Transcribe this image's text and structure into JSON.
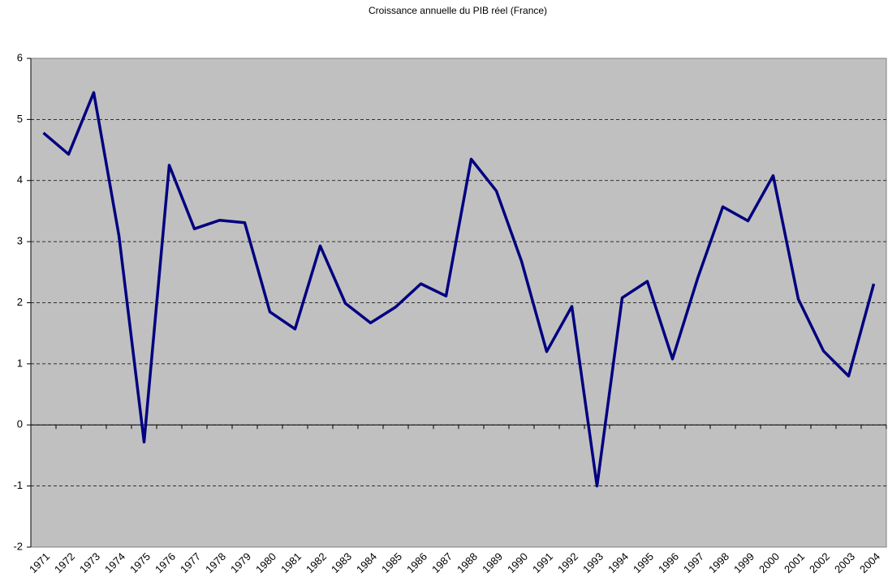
{
  "chart_data": {
    "type": "line",
    "title": "Croissance annuelle du PIB réel (France)",
    "categories": [
      "1971",
      "1972",
      "1973",
      "1974",
      "1975",
      "1976",
      "1977",
      "1978",
      "1979",
      "1980",
      "1981",
      "1982",
      "1983",
      "1984",
      "1985",
      "1986",
      "1987",
      "1988",
      "1989",
      "1990",
      "1991",
      "1992",
      "1993",
      "1994",
      "1995",
      "1996",
      "1997",
      "1998",
      "1999",
      "2000",
      "2001",
      "2002",
      "2003",
      "2004"
    ],
    "series": [
      {
        "name": "PIB",
        "color": "#000080",
        "values": [
          4.78,
          4.43,
          5.44,
          3.1,
          -0.28,
          4.25,
          3.21,
          3.35,
          3.31,
          1.85,
          1.57,
          2.93,
          1.99,
          1.67,
          1.93,
          2.31,
          2.11,
          4.35,
          3.83,
          2.68,
          1.2,
          1.94,
          -1.0,
          2.08,
          2.35,
          1.08,
          2.4,
          3.57,
          3.34,
          4.08,
          2.06,
          1.21,
          0.8,
          2.31
        ]
      }
    ],
    "ylim": [
      -2,
      6
    ],
    "yticks": [
      -2,
      -1,
      0,
      1,
      2,
      3,
      4,
      5,
      6
    ],
    "grid": true,
    "background": "#c0c0c0"
  }
}
